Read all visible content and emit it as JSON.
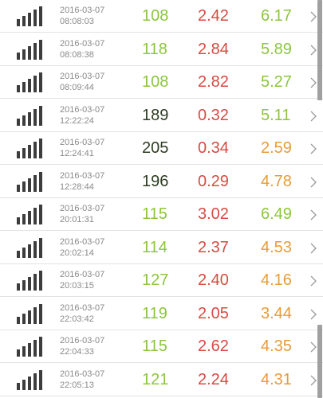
{
  "colors": {
    "green": "#8cc63e",
    "dark": "#2f3d24",
    "red": "#d84a43",
    "orange": "#e89b3a",
    "bar_icon": "#3d3d3d",
    "chevron": "#9a9a9a"
  },
  "icons": {
    "signal": "signal-bars-icon",
    "chevron": "chevron-right-icon"
  },
  "rows": [
    {
      "date": "2016-03-07",
      "time": "08:08:03",
      "v1": "108",
      "v2": "2.42",
      "v3": "6.17",
      "c1": "green",
      "c2": "red",
      "c3": "green"
    },
    {
      "date": "2016-03-07",
      "time": "08:08:38",
      "v1": "118",
      "v2": "2.84",
      "v3": "5.89",
      "c1": "green",
      "c2": "red",
      "c3": "green"
    },
    {
      "date": "2016-03-07",
      "time": "08:09:44",
      "v1": "108",
      "v2": "2.82",
      "v3": "5.27",
      "c1": "green",
      "c2": "red",
      "c3": "green"
    },
    {
      "date": "2016-03-07",
      "time": "12:22:24",
      "v1": "189",
      "v2": "0.32",
      "v3": "5.11",
      "c1": "dark",
      "c2": "red",
      "c3": "green"
    },
    {
      "date": "2016-03-07",
      "time": "12:24:41",
      "v1": "205",
      "v2": "0.34",
      "v3": "2.59",
      "c1": "dark",
      "c2": "red",
      "c3": "orange"
    },
    {
      "date": "2016-03-07",
      "time": "12:28:44",
      "v1": "196",
      "v2": "0.29",
      "v3": "4.78",
      "c1": "dark",
      "c2": "red",
      "c3": "orange"
    },
    {
      "date": "2016-03-07",
      "time": "20:01:31",
      "v1": "115",
      "v2": "3.02",
      "v3": "6.49",
      "c1": "green",
      "c2": "red",
      "c3": "green"
    },
    {
      "date": "2016-03-07",
      "time": "20:02:14",
      "v1": "114",
      "v2": "2.37",
      "v3": "4.53",
      "c1": "green",
      "c2": "red",
      "c3": "orange"
    },
    {
      "date": "2016-03-07",
      "time": "20:03:15",
      "v1": "127",
      "v2": "2.40",
      "v3": "4.16",
      "c1": "green",
      "c2": "red",
      "c3": "orange"
    },
    {
      "date": "2016-03-07",
      "time": "22:03:42",
      "v1": "119",
      "v2": "2.05",
      "v3": "3.44",
      "c1": "green",
      "c2": "red",
      "c3": "orange"
    },
    {
      "date": "2016-03-07",
      "time": "22:04:33",
      "v1": "115",
      "v2": "2.62",
      "v3": "4.35",
      "c1": "green",
      "c2": "red",
      "c3": "orange"
    },
    {
      "date": "2016-03-07",
      "time": "22:05:13",
      "v1": "121",
      "v2": "2.24",
      "v3": "4.31",
      "c1": "green",
      "c2": "red",
      "c3": "orange"
    }
  ]
}
